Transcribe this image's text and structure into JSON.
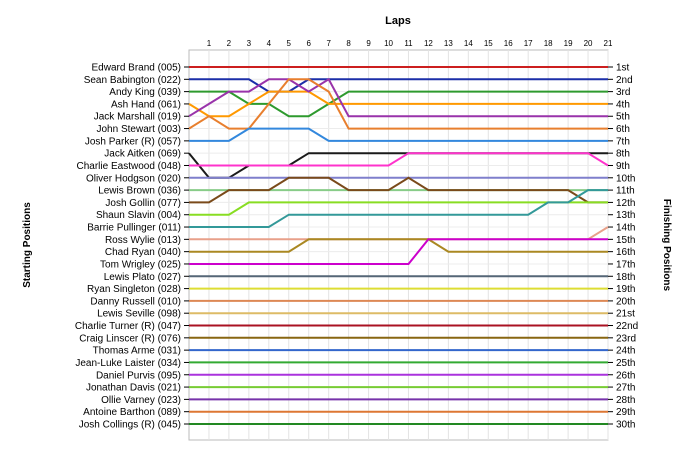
{
  "chart_data": {
    "type": "line",
    "title": "Laps",
    "ylabel_left": "Starting Positions",
    "ylabel_right": "Finishing Positions",
    "grid": true,
    "x": [
      0,
      1,
      2,
      3,
      4,
      5,
      6,
      7,
      8,
      9,
      10,
      11,
      12,
      13,
      14,
      15,
      16,
      17,
      18,
      19,
      20,
      21
    ],
    "x_tick_labels": [
      "1",
      "2",
      "3",
      "4",
      "5",
      "6",
      "7",
      "8",
      "9",
      "10",
      "11",
      "12",
      "13",
      "14",
      "15",
      "16",
      "17",
      "18",
      "19",
      "20",
      "21"
    ],
    "finish_labels": [
      "1st",
      "2nd",
      "3rd",
      "4th",
      "5th",
      "6th",
      "7th",
      "8th",
      "9th",
      "10th",
      "11th",
      "12th",
      "13th",
      "14th",
      "15th",
      "16th",
      "17th",
      "18th",
      "19th",
      "20th",
      "21st",
      "22nd",
      "23rd",
      "24th",
      "25th",
      "26th",
      "27th",
      "28th",
      "29th",
      "30th"
    ],
    "ylim": [
      1,
      30
    ],
    "series": [
      {
        "name": "Edward Brand (005)",
        "color": "#cc1f1f",
        "values": [
          1,
          1,
          1,
          1,
          1,
          1,
          1,
          1,
          1,
          1,
          1,
          1,
          1,
          1,
          1,
          1,
          1,
          1,
          1,
          1,
          1,
          1
        ]
      },
      {
        "name": "Sean Babington (022)",
        "color": "#1c2fa8",
        "values": [
          2,
          2,
          2,
          2,
          3,
          3,
          2,
          2,
          2,
          2,
          2,
          2,
          2,
          2,
          2,
          2,
          2,
          2,
          2,
          2,
          2,
          2
        ]
      },
      {
        "name": "Andy King (039)",
        "color": "#2e9a2e",
        "values": [
          3,
          3,
          3,
          4,
          4,
          5,
          5,
          4,
          3,
          3,
          3,
          3,
          3,
          3,
          3,
          3,
          3,
          3,
          3,
          3,
          3,
          3
        ]
      },
      {
        "name": "Ash Hand (061)",
        "color": "#ff9900",
        "values": [
          4,
          5,
          5,
          4,
          3,
          3,
          3,
          4,
          4,
          4,
          4,
          4,
          4,
          4,
          4,
          4,
          4,
          4,
          4,
          4,
          4,
          4
        ]
      },
      {
        "name": "Jack Marshall (019)",
        "color": "#9933aa",
        "values": [
          5,
          4,
          3,
          3,
          2,
          2,
          3,
          2,
          5,
          5,
          5,
          5,
          5,
          5,
          5,
          5,
          5,
          5,
          5,
          5,
          5,
          5
        ]
      },
      {
        "name": "John Stewart (003)",
        "color": "#e87f2e",
        "values": [
          6,
          5,
          6,
          6,
          4,
          2,
          2,
          3,
          6,
          6,
          6,
          6,
          6,
          6,
          6,
          6,
          6,
          6,
          6,
          6,
          6,
          6
        ]
      },
      {
        "name": "Josh Parker (R) (057)",
        "color": "#3388dd",
        "values": [
          7,
          7,
          7,
          6,
          6,
          6,
          6,
          7,
          7,
          7,
          7,
          7,
          7,
          7,
          7,
          7,
          7,
          7,
          7,
          7,
          7,
          7
        ]
      },
      {
        "name": "Jack Aitken (069)",
        "color": "#1a1a1a",
        "values": [
          8,
          10,
          10,
          9,
          9,
          9,
          8,
          8,
          8,
          8,
          8,
          8,
          8,
          8,
          8,
          8,
          8,
          8,
          8,
          8,
          8,
          8
        ]
      },
      {
        "name": "Charlie Eastwood (048)",
        "color": "#ff33cc",
        "values": [
          9,
          9,
          9,
          9,
          9,
          9,
          9,
          9,
          9,
          9,
          9,
          8,
          8,
          8,
          8,
          8,
          8,
          8,
          8,
          8,
          8,
          9
        ]
      },
      {
        "name": "Oliver Hodgson (020)",
        "color": "#7f7fcc",
        "values": [
          10,
          10,
          10,
          10,
          10,
          10,
          10,
          10,
          10,
          10,
          10,
          10,
          10,
          10,
          10,
          10,
          10,
          10,
          10,
          10,
          10,
          10
        ]
      },
      {
        "name": "Lewis Brown (036)",
        "color": "#88cc88",
        "values": [
          11,
          11,
          11,
          11,
          11,
          11,
          11,
          11,
          11,
          11,
          11,
          11,
          11,
          11,
          11,
          11,
          11,
          11,
          11,
          11,
          11,
          11
        ]
      },
      {
        "name": "Josh Gollin (077)",
        "color": "#7a4a1a",
        "values": [
          12,
          12,
          11,
          11,
          11,
          10,
          10,
          10,
          11,
          11,
          11,
          10,
          11,
          11,
          11,
          11,
          11,
          11,
          11,
          11,
          12,
          12
        ]
      },
      {
        "name": "Shaun Slavin (004)",
        "color": "#88dd22",
        "values": [
          13,
          13,
          13,
          12,
          12,
          12,
          12,
          12,
          12,
          12,
          12,
          12,
          12,
          12,
          12,
          12,
          12,
          12,
          12,
          12,
          12,
          12
        ]
      },
      {
        "name": "Barrie Pullinger (011)",
        "color": "#339999",
        "values": [
          14,
          14,
          14,
          14,
          14,
          13,
          13,
          13,
          13,
          13,
          13,
          13,
          13,
          13,
          13,
          13,
          13,
          13,
          12,
          12,
          11,
          11
        ]
      },
      {
        "name": "Ross Wylie (013)",
        "color": "#e8a08a",
        "values": [
          15,
          15,
          15,
          15,
          15,
          15,
          15,
          15,
          15,
          15,
          15,
          15,
          15,
          15,
          15,
          15,
          15,
          15,
          15,
          15,
          15,
          14
        ]
      },
      {
        "name": "Chad Ryan (040)",
        "color": "#aa8822",
        "values": [
          16,
          16,
          16,
          16,
          16,
          16,
          15,
          15,
          15,
          15,
          15,
          15,
          15,
          16,
          16,
          16,
          16,
          16,
          16,
          16,
          16,
          16
        ]
      },
      {
        "name": "Tom Wrigley (025)",
        "color": "#cc00cc",
        "values": [
          17,
          17,
          17,
          17,
          17,
          17,
          17,
          17,
          17,
          17,
          17,
          17,
          15,
          15,
          15,
          15,
          15,
          15,
          15,
          15,
          15,
          15
        ]
      },
      {
        "name": "Lewis Plato (027)",
        "color": "#556677",
        "values": [
          18,
          18,
          18,
          18,
          18,
          18,
          18,
          18,
          18,
          18,
          18,
          18,
          18,
          18,
          18,
          18,
          18,
          18,
          18,
          18,
          18,
          18
        ]
      },
      {
        "name": "Ryan Singleton (028)",
        "color": "#dddd33",
        "values": [
          19,
          19,
          19,
          19,
          19,
          19,
          19,
          19,
          19,
          19,
          19,
          19,
          19,
          19,
          19,
          19,
          19,
          19,
          19,
          19,
          19,
          19
        ]
      },
      {
        "name": "Danny Russell (010)",
        "color": "#dd8855",
        "values": [
          20,
          20,
          20,
          20,
          20,
          20,
          20,
          20,
          20,
          20,
          20,
          20,
          20,
          20,
          20,
          20,
          20,
          20,
          20,
          20,
          20,
          20
        ]
      },
      {
        "name": "Lewis Seville (098)",
        "color": "#ddbb66",
        "values": [
          21,
          21,
          21,
          21,
          21,
          21,
          21,
          21,
          21,
          21,
          21,
          21,
          21,
          21,
          21,
          21,
          21,
          21,
          21,
          21,
          21,
          21
        ]
      },
      {
        "name": "Charlie Turner (R) (047)",
        "color": "#aa1122",
        "values": [
          22,
          22,
          22,
          22,
          22,
          22,
          22,
          22,
          22,
          22,
          22,
          22,
          22,
          22,
          22,
          22,
          22,
          22,
          22,
          22,
          22,
          22
        ]
      },
      {
        "name": "Craig Linscer (R) (076)",
        "color": "#886611",
        "values": [
          23,
          23,
          23,
          23,
          23,
          23,
          23,
          23,
          23,
          23,
          23,
          23,
          23,
          23,
          23,
          23,
          23,
          23,
          23,
          23,
          23,
          23
        ]
      },
      {
        "name": "Thomas Arme (031)",
        "color": "#3366cc",
        "values": [
          24,
          24,
          24,
          24,
          24,
          24,
          24,
          24,
          24,
          24,
          24,
          24,
          24,
          24,
          24,
          24,
          24,
          24,
          24,
          24,
          24,
          24
        ]
      },
      {
        "name": "Jean-Luke Laister (034)",
        "color": "#33aa33",
        "values": [
          25,
          25,
          25,
          25,
          25,
          25,
          25,
          25,
          25,
          25,
          25,
          25,
          25,
          25,
          25,
          25,
          25,
          25,
          25,
          25,
          25,
          25
        ]
      },
      {
        "name": "Daniel Purvis (095)",
        "color": "#aa33dd",
        "values": [
          26,
          26,
          26,
          26,
          26,
          26,
          26,
          26,
          26,
          26,
          26,
          26,
          26,
          26,
          26,
          26,
          26,
          26,
          26,
          26,
          26,
          26
        ]
      },
      {
        "name": "Jonathan Davis (021)",
        "color": "#77cc33",
        "values": [
          27,
          27,
          27,
          27,
          27,
          27,
          27,
          27,
          27,
          27,
          27,
          27,
          27,
          27,
          27,
          27,
          27,
          27,
          27,
          27,
          27,
          27
        ]
      },
      {
        "name": "Ollie Varney (023)",
        "color": "#7733aa",
        "values": [
          28,
          28,
          28,
          28,
          28,
          28,
          28,
          28,
          28,
          28,
          28,
          28,
          28,
          28,
          28,
          28,
          28,
          28,
          28,
          28,
          28,
          28
        ]
      },
      {
        "name": "Antoine Barthon (089)",
        "color": "#dd7733",
        "values": [
          29,
          29,
          29,
          29,
          29,
          29,
          29,
          29,
          29,
          29,
          29,
          29,
          29,
          29,
          29,
          29,
          29,
          29,
          29,
          29,
          29,
          29
        ]
      },
      {
        "name": "Josh Collings (R) (045)",
        "color": "#228822",
        "values": [
          30,
          30,
          30,
          30,
          30,
          30,
          30,
          30,
          30,
          30,
          30,
          30,
          30,
          30,
          30,
          30,
          30,
          30,
          30,
          30,
          30,
          30
        ]
      }
    ]
  }
}
